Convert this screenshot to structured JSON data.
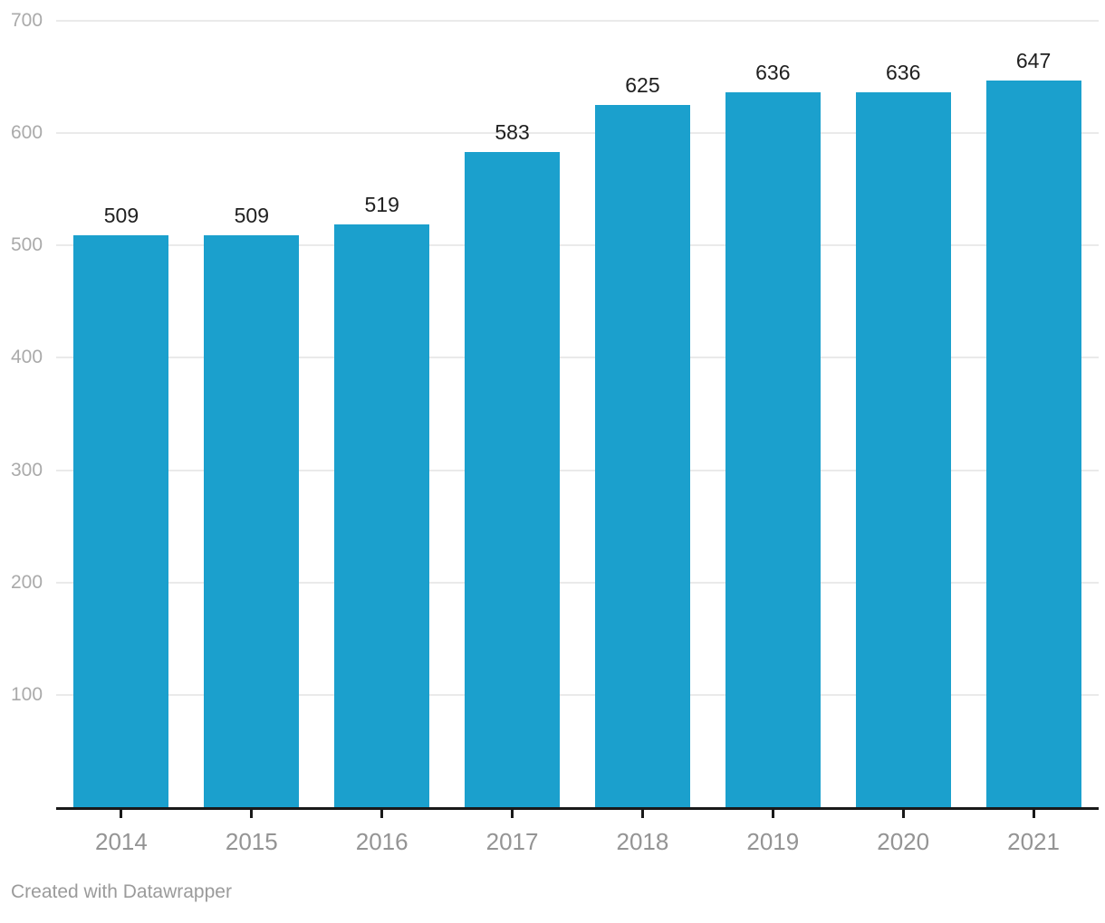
{
  "chart_data": {
    "type": "bar",
    "categories": [
      "2014",
      "2015",
      "2016",
      "2017",
      "2018",
      "2019",
      "2020",
      "2021"
    ],
    "values": [
      509,
      509,
      519,
      583,
      625,
      636,
      636,
      647
    ],
    "title": "",
    "xlabel": "",
    "ylabel": "",
    "ylim": [
      0,
      700
    ],
    "yticks": [
      100,
      200,
      300,
      400,
      500,
      600,
      700
    ],
    "grid": "horizontal gridlines on",
    "legend": "none",
    "value_labels_shown": true,
    "colors": {
      "bar": "#1BA0CD",
      "gridline": "#eaeaea",
      "axis_line": "#191919",
      "y_tick_label": "#aaaaaa",
      "x_tick_label": "#949494",
      "value_label": "#1f1f1f",
      "credit_text": "#9b9b9b"
    }
  },
  "footer": {
    "credit": "Created with Datawrapper"
  }
}
